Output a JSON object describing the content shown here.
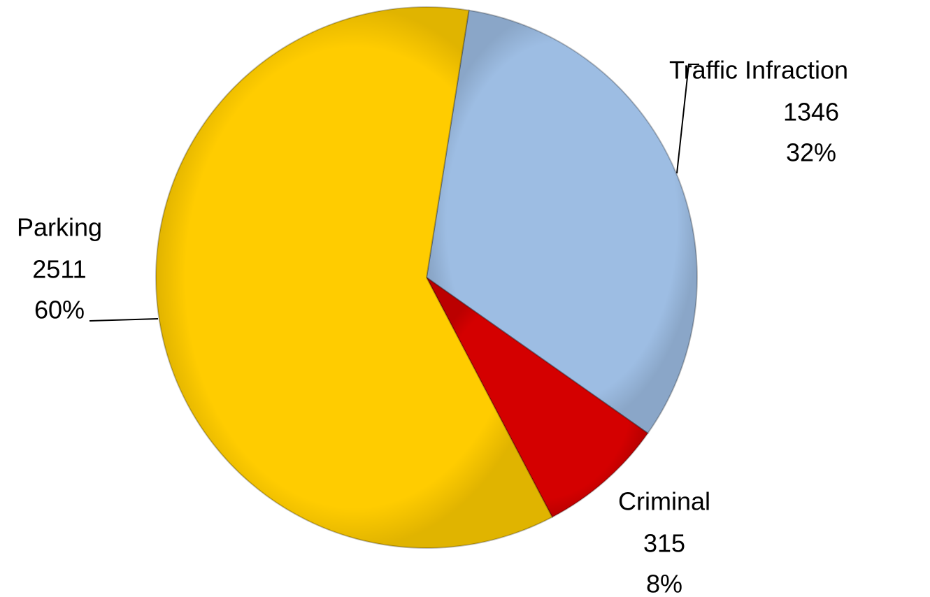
{
  "chart_data": {
    "type": "pie",
    "categories": [
      "Traffic Infraction",
      "Criminal",
      "Parking"
    ],
    "values": [
      1346,
      315,
      2511
    ],
    "percent_labels": [
      "32%",
      "8%",
      "60%"
    ],
    "colors": [
      "#9dbde3",
      "#d40000",
      "#ffcc00"
    ]
  }
}
